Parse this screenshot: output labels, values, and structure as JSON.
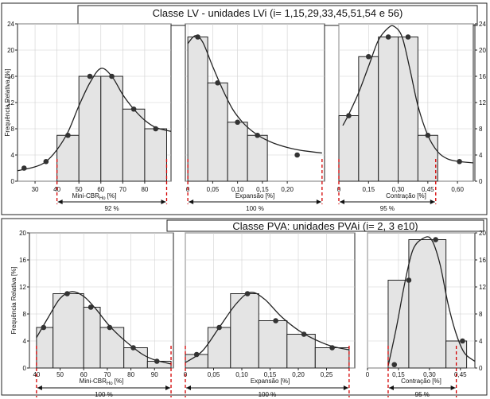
{
  "colors": {
    "bar_fill": "#e4e4e4",
    "bar_stroke": "#222222",
    "curve": "#222222",
    "point": "#333333",
    "range_marker": "#d40000"
  },
  "chart_data": [
    {
      "title": "Classe LV - unidades LVi (i= 1,15,29,33,45,51,54 e 56)",
      "ylabel": "Frequência Relativa [%]",
      "y_ticks": [
        "0",
        "4",
        "8",
        "12",
        "16",
        "20",
        "24"
      ],
      "ylim": [
        0,
        24
      ],
      "panels": [
        {
          "type": "bar",
          "xlabel": "Mini-CBR",
          "xlabel_sub": "Ho",
          "xlabel_unit": " [%]",
          "xlim": [
            22,
            92
          ],
          "x_ticks": [
            "30",
            "40",
            "50",
            "60",
            "70",
            "80"
          ],
          "x_tick_values": [
            30,
            40,
            50,
            60,
            70,
            80
          ],
          "bins": [
            [
              40,
              50,
              7
            ],
            [
              50,
              60,
              16
            ],
            [
              60,
              70,
              16
            ],
            [
              70,
              80,
              11
            ],
            [
              80,
              90,
              8
            ]
          ],
          "points": [
            [
              25,
              2
            ],
            [
              35,
              3
            ],
            [
              45,
              7
            ],
            [
              55,
              16
            ],
            [
              65,
              16
            ],
            [
              75,
              11
            ],
            [
              85,
              8
            ]
          ],
          "curve": [
            [
              22,
              1.6
            ],
            [
              30,
              2.2
            ],
            [
              35,
              3
            ],
            [
              40,
              4.8
            ],
            [
              45,
              7.5
            ],
            [
              50,
              11.5
            ],
            [
              55,
              15
            ],
            [
              60,
              17.2
            ],
            [
              65,
              16
            ],
            [
              70,
              13.2
            ],
            [
              75,
              11
            ],
            [
              80,
              9.3
            ],
            [
              85,
              8.2
            ],
            [
              92,
              7.6
            ]
          ],
          "range": [
            40,
            90
          ],
          "range_label": "92 %"
        },
        {
          "type": "bar",
          "xlabel": "Expansão",
          "xlabel_sub": "",
          "xlabel_unit": " [%]",
          "xlim": [
            -0.005,
            0.275
          ],
          "x_ticks": [
            "0",
            "0,05",
            "0,10",
            "0,15",
            "0,20"
          ],
          "x_tick_values": [
            0,
            0.05,
            0.1,
            0.15,
            0.2
          ],
          "bins": [
            [
              0,
              0.04,
              22
            ],
            [
              0.04,
              0.08,
              15
            ],
            [
              0.08,
              0.12,
              9
            ],
            [
              0.12,
              0.16,
              7
            ]
          ],
          "points": [
            [
              0.02,
              22
            ],
            [
              0.06,
              15
            ],
            [
              0.1,
              9
            ],
            [
              0.14,
              7
            ],
            [
              0.22,
              4
            ]
          ],
          "curve": [
            [
              0,
              21
            ],
            [
              0.015,
              22.2
            ],
            [
              0.03,
              21.2
            ],
            [
              0.05,
              17.5
            ],
            [
              0.07,
              14
            ],
            [
              0.09,
              11
            ],
            [
              0.11,
              9
            ],
            [
              0.13,
              7.6
            ],
            [
              0.15,
              6.6
            ],
            [
              0.18,
              5.6
            ],
            [
              0.22,
              4.8
            ],
            [
              0.27,
              4.3
            ]
          ],
          "range": [
            0,
            0.27
          ],
          "range_label": "100 %"
        },
        {
          "type": "bar",
          "xlabel": "Contração",
          "xlabel_sub": "",
          "xlabel_unit": " [%]",
          "xlim": [
            0,
            0.68
          ],
          "x_ticks": [
            "0",
            "0,15",
            "0,30",
            "0,45",
            "0,60"
          ],
          "x_tick_values": [
            0,
            0.15,
            0.3,
            0.45,
            0.6
          ],
          "bins": [
            [
              0,
              0.1,
              10
            ],
            [
              0.1,
              0.2,
              19
            ],
            [
              0.2,
              0.3,
              22
            ],
            [
              0.3,
              0.4,
              22
            ],
            [
              0.4,
              0.5,
              7
            ]
          ],
          "points": [
            [
              0.05,
              10
            ],
            [
              0.15,
              19
            ],
            [
              0.25,
              22
            ],
            [
              0.35,
              22
            ],
            [
              0.45,
              7
            ],
            [
              0.61,
              3
            ]
          ],
          "curve": [
            [
              0.02,
              8.5
            ],
            [
              0.05,
              10.2
            ],
            [
              0.1,
              13.5
            ],
            [
              0.15,
              17.5
            ],
            [
              0.2,
              21.5
            ],
            [
              0.25,
              23.4
            ],
            [
              0.28,
              23.6
            ],
            [
              0.32,
              22
            ],
            [
              0.36,
              17
            ],
            [
              0.4,
              11.5
            ],
            [
              0.45,
              7
            ],
            [
              0.5,
              4.5
            ],
            [
              0.55,
              3.4
            ],
            [
              0.61,
              3
            ],
            [
              0.68,
              2.8
            ]
          ],
          "range": [
            0,
            0.49
          ],
          "range_label": "95 %"
        }
      ]
    },
    {
      "title": "Classe PVA: unidades PVAi (i= 2, 3 e10)",
      "ylabel": "Frequência Relativa [%]",
      "y_ticks": [
        "0",
        "4",
        "8",
        "12",
        "16",
        "20"
      ],
      "ylim": [
        0,
        20
      ],
      "panels": [
        {
          "type": "bar",
          "xlabel": "Mini-CBR",
          "xlabel_sub": "Ho",
          "xlabel_unit": " [%]",
          "xlim": [
            37,
            98
          ],
          "x_ticks": [
            "40",
            "50",
            "60",
            "70",
            "80",
            "90"
          ],
          "x_tick_values": [
            40,
            50,
            60,
            70,
            80,
            90
          ],
          "bins": [
            [
              40,
              47,
              6
            ],
            [
              47,
              60,
              11
            ],
            [
              60,
              67,
              9
            ],
            [
              67,
              77,
              6
            ],
            [
              77,
              87,
              3
            ],
            [
              87,
              97,
              1
            ]
          ],
          "points": [
            [
              43,
              6
            ],
            [
              53,
              11
            ],
            [
              63,
              9
            ],
            [
              71,
              6
            ],
            [
              81,
              3
            ],
            [
              91,
              1
            ]
          ],
          "curve": [
            [
              40,
              4.5
            ],
            [
              45,
              7.5
            ],
            [
              50,
              10.3
            ],
            [
              55,
              11.3
            ],
            [
              60,
              10.6
            ],
            [
              65,
              8.8
            ],
            [
              70,
              6.6
            ],
            [
              75,
              4.8
            ],
            [
              80,
              3.3
            ],
            [
              85,
              2
            ],
            [
              90,
              1.2
            ],
            [
              97,
              0.6
            ]
          ],
          "range": [
            40,
            97
          ],
          "range_label": "100 %"
        },
        {
          "type": "bar",
          "xlabel": "Expansão",
          "xlabel_sub": "",
          "xlabel_unit": " [%]",
          "xlim": [
            0,
            0.3
          ],
          "x_ticks": [
            "0",
            "0,05",
            "0,10",
            "0,15",
            "0,20",
            "0,25"
          ],
          "x_tick_values": [
            0,
            0.05,
            0.1,
            0.15,
            0.2,
            0.25
          ],
          "bins": [
            [
              0,
              0.04,
              2
            ],
            [
              0.04,
              0.08,
              6
            ],
            [
              0.08,
              0.13,
              11
            ],
            [
              0.13,
              0.18,
              7
            ],
            [
              0.18,
              0.23,
              5
            ],
            [
              0.23,
              0.29,
              3
            ]
          ],
          "points": [
            [
              0.02,
              2
            ],
            [
              0.06,
              6
            ],
            [
              0.11,
              11
            ],
            [
              0.16,
              7
            ],
            [
              0.21,
              5
            ],
            [
              0.26,
              3
            ]
          ],
          "curve": [
            [
              0,
              0.8
            ],
            [
              0.03,
              2.5
            ],
            [
              0.06,
              6
            ],
            [
              0.09,
              9.5
            ],
            [
              0.115,
              11.2
            ],
            [
              0.14,
              10.2
            ],
            [
              0.17,
              7.6
            ],
            [
              0.2,
              5.6
            ],
            [
              0.23,
              4.2
            ],
            [
              0.26,
              3.2
            ],
            [
              0.29,
              2.7
            ]
          ],
          "range": [
            0,
            0.29
          ],
          "range_label": "100 %"
        },
        {
          "type": "bar",
          "xlabel": "Contração",
          "xlabel_sub": "",
          "xlabel_unit": " [%]",
          "xlim": [
            0,
            0.52
          ],
          "x_ticks": [
            "0",
            "0,15",
            "0,30",
            "0,45"
          ],
          "x_tick_values": [
            0,
            0.15,
            0.3,
            0.45
          ],
          "bins": [
            [
              0.1,
              0.2,
              13
            ],
            [
              0.2,
              0.38,
              19
            ],
            [
              0.38,
              0.48,
              4
            ]
          ],
          "points": [
            [
              0.13,
              0.5
            ],
            [
              0.2,
              13
            ],
            [
              0.33,
              19
            ],
            [
              0.46,
              4
            ]
          ],
          "curve": [
            [
              0.1,
              0.3
            ],
            [
              0.14,
              6
            ],
            [
              0.18,
              12.5
            ],
            [
              0.22,
              17.5
            ],
            [
              0.27,
              19.2
            ],
            [
              0.31,
              19
            ],
            [
              0.35,
              15.5
            ],
            [
              0.39,
              9.5
            ],
            [
              0.43,
              5
            ],
            [
              0.47,
              2.2
            ],
            [
              0.52,
              1
            ]
          ],
          "range": [
            0.1,
            0.43
          ],
          "range_label": "95 %"
        }
      ]
    }
  ]
}
